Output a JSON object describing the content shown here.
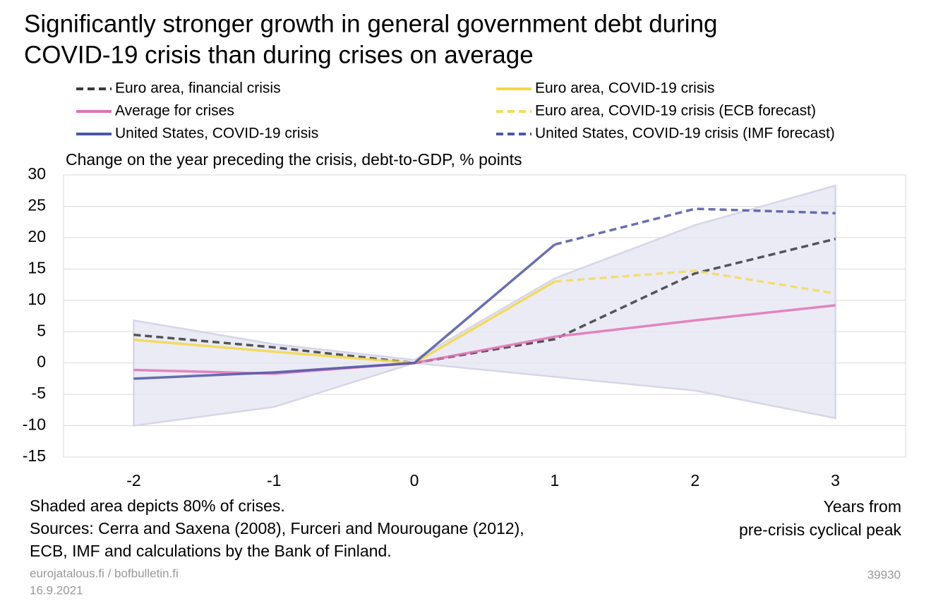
{
  "chart_data": {
    "type": "line",
    "title": [
      "Significantly stronger growth in general government debt during",
      "COVID-19 crisis than during crises on average"
    ],
    "subtitle": "Change on the year preceding the crisis, debt-to-GDP, % points",
    "xlabel": [
      "Years from",
      "pre-crisis cyclical peak"
    ],
    "x": [
      -2,
      -1,
      0,
      1,
      2,
      3
    ],
    "xlim": [
      -2.5,
      3.5
    ],
    "ylim": [
      -15,
      30
    ],
    "yticks": [
      -15,
      -10,
      -5,
      0,
      5,
      10,
      15,
      20,
      25,
      30
    ],
    "grid": true,
    "band": {
      "color": "#e6e6f3",
      "upper": [
        6.8,
        3.0,
        0.5,
        13.5,
        22.0,
        28.3
      ],
      "lower": [
        -10.0,
        -7.0,
        0,
        -2.2,
        -4.4,
        -8.8
      ]
    },
    "series": [
      {
        "name": "Euro area, financial crisis",
        "color": "#3a3a3a",
        "dash": true,
        "values": [
          4.5,
          2.5,
          0,
          3.8,
          14.3,
          19.8
        ]
      },
      {
        "name": "Euro area, COVID-19 crisis",
        "color": "#f2d845",
        "dash": false,
        "values": [
          3.7,
          1.8,
          0,
          13.0,
          null,
          null
        ]
      },
      {
        "name": "Average for crises",
        "color": "#e072b4",
        "dash": false,
        "values": [
          -1.1,
          -1.7,
          0,
          4.2,
          6.8,
          9.2
        ]
      },
      {
        "name": "Euro area, COVID-19 crisis (ECB forecast)",
        "color": "#f2dc5c",
        "dash": true,
        "values": [
          null,
          null,
          null,
          13.0,
          14.7,
          11.1
        ]
      },
      {
        "name": "United States, COVID-19 crisis",
        "color": "#4e56a6",
        "dash": false,
        "values": [
          -2.5,
          -1.5,
          0,
          18.9,
          null,
          null
        ]
      },
      {
        "name": "United States, COVID-19 crisis (IMF forecast)",
        "color": "#4e56a6",
        "dash": true,
        "values": [
          null,
          null,
          null,
          18.9,
          24.6,
          23.9
        ]
      }
    ],
    "notes": [
      "Shaded area depicts 80% of crises.",
      "Sources: Cerra and Saxena (2008), Furceri and Mourougane (2012),",
      "ECB, IMF and calculations by the Bank of Finland."
    ],
    "footer": {
      "site": "eurojatalous.fi / bofbulletin.fi",
      "date": "16.9.2021",
      "id": "39930"
    }
  }
}
